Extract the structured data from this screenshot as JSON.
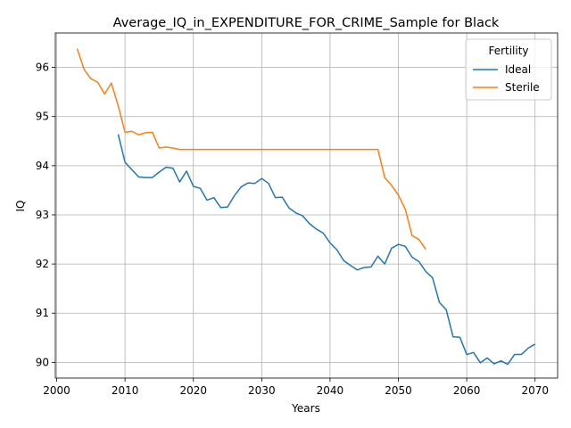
{
  "chart_data": {
    "type": "line",
    "title": "Average_IQ_in_EXPENDITURE_FOR_CRIME_Sample for Black",
    "xlabel": "Years",
    "ylabel": "IQ",
    "xlim": [
      1999.8,
      2073.3
    ],
    "ylim": [
      89.68,
      96.7
    ],
    "xticks": [
      2000,
      2010,
      2020,
      2030,
      2040,
      2050,
      2060,
      2070
    ],
    "yticks": [
      90,
      91,
      92,
      93,
      94,
      95,
      96
    ],
    "grid": true,
    "legend": {
      "title": "Fertility",
      "position": "top-right"
    },
    "series": [
      {
        "name": "Ideal",
        "color": "#1f77b4",
        "x": [
          2009,
          2010,
          2011,
          2012,
          2013,
          2014,
          2015,
          2016,
          2017,
          2018,
          2019,
          2020,
          2021,
          2022,
          2023,
          2024,
          2025,
          2026,
          2027,
          2028,
          2029,
          2030,
          2031,
          2032,
          2033,
          2034,
          2035,
          2036,
          2037,
          2038,
          2039,
          2040,
          2041,
          2042,
          2043,
          2044,
          2045,
          2046,
          2047,
          2048,
          2049,
          2050,
          2051,
          2052,
          2053,
          2054,
          2055,
          2056,
          2057,
          2058,
          2059,
          2060,
          2061,
          2062,
          2063,
          2064,
          2065,
          2066,
          2067,
          2068,
          2069,
          2070
        ],
        "y": [
          94.64,
          94.07,
          93.92,
          93.77,
          93.76,
          93.76,
          93.87,
          93.97,
          93.95,
          93.67,
          93.89,
          93.58,
          93.54,
          93.3,
          93.35,
          93.15,
          93.16,
          93.39,
          93.57,
          93.65,
          93.64,
          93.74,
          93.64,
          93.35,
          93.36,
          93.14,
          93.04,
          92.98,
          92.82,
          92.71,
          92.63,
          92.43,
          92.29,
          92.07,
          91.97,
          91.88,
          91.93,
          91.94,
          92.16,
          92.0,
          92.32,
          92.4,
          92.36,
          92.14,
          92.05,
          91.85,
          91.72,
          91.22,
          91.07,
          90.52,
          90.51,
          90.16,
          90.2,
          89.99,
          90.09,
          89.97,
          90.03,
          89.96,
          90.16,
          90.16,
          90.29,
          90.37
        ]
      },
      {
        "name": "Sterile",
        "color": "#ff7f0e",
        "x": [
          2003,
          2004,
          2005,
          2006,
          2007,
          2008,
          2009,
          2010,
          2011,
          2012,
          2013,
          2014,
          2015,
          2016,
          2017,
          2018,
          2019,
          2020,
          2021,
          2022,
          2023,
          2024,
          2025,
          2026,
          2027,
          2028,
          2029,
          2030,
          2031,
          2032,
          2033,
          2034,
          2035,
          2036,
          2037,
          2038,
          2039,
          2040,
          2041,
          2042,
          2043,
          2044,
          2045,
          2046,
          2047,
          2048,
          2049,
          2050,
          2051,
          2052,
          2053,
          2054
        ],
        "y": [
          96.38,
          95.96,
          95.77,
          95.7,
          95.46,
          95.68,
          95.22,
          94.68,
          94.7,
          94.63,
          94.67,
          94.68,
          94.36,
          94.38,
          94.36,
          94.33,
          94.33,
          94.33,
          94.33,
          94.33,
          94.33,
          94.33,
          94.33,
          94.33,
          94.33,
          94.33,
          94.33,
          94.33,
          94.33,
          94.33,
          94.33,
          94.33,
          94.33,
          94.33,
          94.33,
          94.33,
          94.33,
          94.33,
          94.33,
          94.33,
          94.33,
          94.33,
          94.33,
          94.33,
          94.33,
          93.76,
          93.6,
          93.4,
          93.12,
          92.58,
          92.5,
          92.3
        ]
      }
    ]
  }
}
